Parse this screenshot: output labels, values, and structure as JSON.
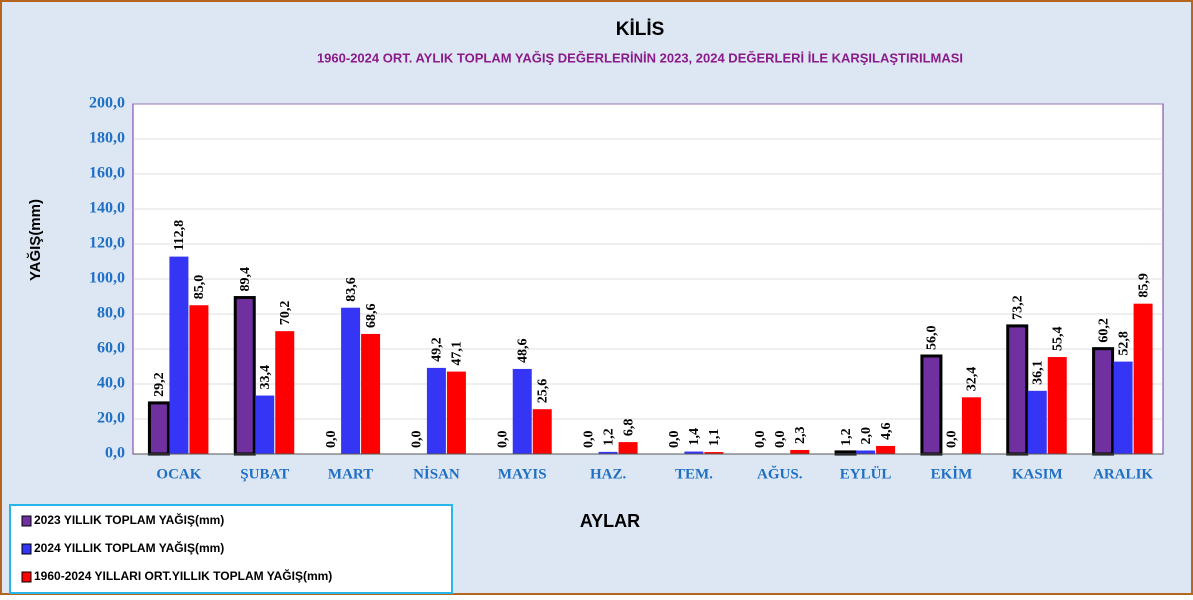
{
  "chart_data": {
    "type": "bar",
    "title": "KİLİS",
    "subtitle": "1960-2024  ORT. AYLIK TOPLAM YAĞIŞ DEĞERLERİNİN  2023,  2024  DEĞERLERİ  İLE KARŞILAŞTIRILMASI",
    "y_label": "YAĞIŞ(mm)",
    "x_label": "AYLAR",
    "categories": [
      "OCAK",
      "ŞUBAT",
      "MART",
      "NİSAN",
      "MAYIS",
      "HAZ.",
      "TEM.",
      "AĞUS.",
      "EYLÜL",
      "EKİM",
      "KASIM",
      "ARALIK"
    ],
    "series": [
      {
        "name": "2023 YILLIK TOPLAM  YAĞIŞ(mm)",
        "color": "#7030a0",
        "values": [
          29.2,
          89.4,
          0.0,
          0.0,
          0.0,
          0.0,
          0.0,
          0.0,
          1.2,
          56.0,
          73.2,
          60.2
        ],
        "value_labels": [
          "29,2",
          "89,4",
          "0,0",
          "0,0",
          "0,0",
          "0,0",
          "0,0",
          "0,0",
          "1,2",
          "56,0",
          "73,2",
          "60,2"
        ]
      },
      {
        "name": "2024 YILLIK TOPLAM  YAĞIŞ(mm)",
        "color": "#3535f5",
        "values": [
          112.8,
          33.4,
          83.6,
          49.2,
          48.6,
          1.2,
          1.4,
          0.0,
          2.0,
          0.0,
          36.1,
          52.8
        ],
        "value_labels": [
          "112,8",
          "33,4",
          "83,6",
          "49,2",
          "48,6",
          "1,2",
          "1,4",
          "0,0",
          "2,0",
          "0,0",
          "36,1",
          "52,8"
        ]
      },
      {
        "name": "1960-2024 YILLARI  ORT.YILLIK TOPLAM YAĞIŞ(mm)",
        "color": "#ff0000",
        "values": [
          85.0,
          70.2,
          68.6,
          47.1,
          25.6,
          6.8,
          1.1,
          2.3,
          4.6,
          32.4,
          55.4,
          85.9
        ],
        "value_labels": [
          "85,0",
          "70,2",
          "68,6",
          "47,1",
          "25,6",
          "6,8",
          "1,1",
          "2,3",
          "4,6",
          "32,4",
          "55,4",
          "85,9"
        ]
      }
    ],
    "ylim": [
      0,
      200
    ],
    "yticks": [
      {
        "value": 0,
        "label": "0,0"
      },
      {
        "value": 20,
        "label": "20,0"
      },
      {
        "value": 40,
        "label": "40,0"
      },
      {
        "value": 60,
        "label": "60,0"
      },
      {
        "value": 80,
        "label": "80,0"
      },
      {
        "value": 100,
        "label": "100,0"
      },
      {
        "value": 120,
        "label": "120,0"
      },
      {
        "value": 140,
        "label": "140,0"
      },
      {
        "value": 160,
        "label": "160,0"
      },
      {
        "value": 180,
        "label": "180,0"
      },
      {
        "value": 200,
        "label": "200,0"
      }
    ],
    "grid": true
  }
}
